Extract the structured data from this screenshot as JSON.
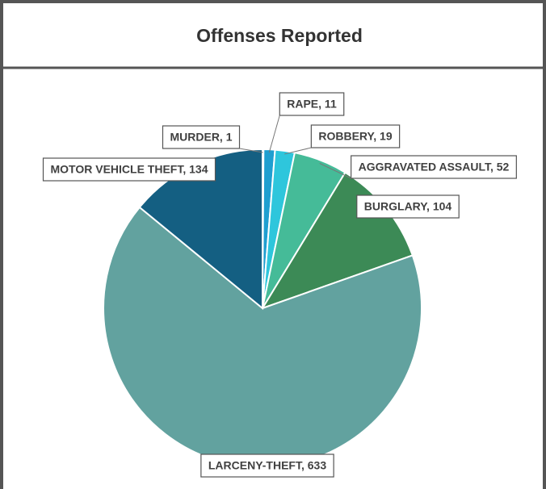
{
  "chart_data": {
    "type": "pie",
    "title": "Offenses Reported",
    "values": [
      1,
      11,
      19,
      52,
      104,
      633,
      134
    ],
    "value_labels": [
      "MURDER, 1",
      "RAPE, 11",
      "ROBBERY, 19",
      "AGGRAVATED ASSAULT, 52",
      "BURGLARY, 104",
      "LARCENY-THEFT, 633",
      "MOTOR VEHICLE THEFT, 134"
    ],
    "colors": [
      "#2e75b6",
      "#1f9fd0",
      "#2ec6dc",
      "#45bb98",
      "#3c8a56",
      "#62a29f",
      "#145f82"
    ]
  }
}
